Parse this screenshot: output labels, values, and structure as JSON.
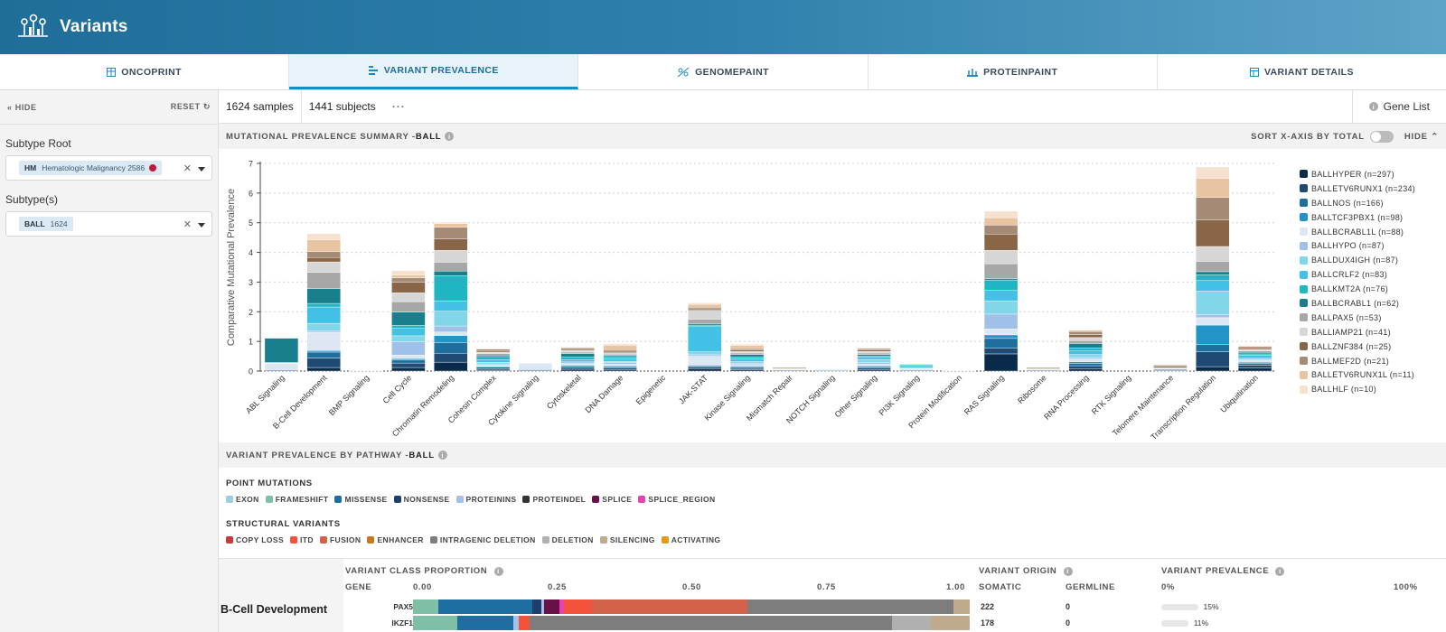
{
  "app": {
    "title": "Variants"
  },
  "tabs": [
    {
      "label": "ONCOPRINT",
      "icon": "grid-icon"
    },
    {
      "label": "VARIANT PREVALENCE",
      "icon": "bars-icon"
    },
    {
      "label": "GENOMEPAINT",
      "icon": "genome-icon"
    },
    {
      "label": "PROTEINPAINT",
      "icon": "protein-icon"
    },
    {
      "label": "VARIANT DETAILS",
      "icon": "table-icon"
    }
  ],
  "sidebar": {
    "hide_label": "HIDE",
    "reset_label": "RESET",
    "subtype_root": {
      "label": "Subtype Root",
      "chip_code": "HM",
      "chip_text": "Hematologic Malignancy 2586",
      "chip_dot_color": "#c4153c"
    },
    "subtypes": {
      "label": "Subtype(s)",
      "chip_code": "BALL",
      "chip_text": "1624"
    }
  },
  "toolbar": {
    "samples": "1624 samples",
    "subjects": "1441 subjects",
    "more": "···",
    "gene_list": "Gene List"
  },
  "summary": {
    "title": "MUTATIONAL PREVALENCE SUMMARY - ",
    "title_bold": "BALL",
    "sort_label": "SORT X-AXIS BY TOTAL",
    "hide_label": "HIDE"
  },
  "chart_data": {
    "type": "bar",
    "stacked": true,
    "ylabel": "Comparative Mutational Prevalence",
    "ylim": [
      0,
      7
    ],
    "yticks": [
      0,
      1,
      2,
      3,
      4,
      5,
      6,
      7
    ],
    "grid": true,
    "legend_position": "right",
    "categories": [
      "ABL Signaling",
      "B-Cell Development",
      "BMP Signaling",
      "Cell Cycle",
      "Chromatin Remodeling",
      "Cohesin Complex",
      "Cytokine Signaling",
      "Cytoskeletal",
      "DNA Damage",
      "Epigenetic",
      "JAK-STAT",
      "Kinase Signaling",
      "Mismatch Repair",
      "NOTCH Signaling",
      "Other Signaling",
      "PI3K Signaling",
      "Protein Modification",
      "RAS Signaling",
      "Ribosome",
      "RNA Processing",
      "RTK Signaling",
      "Telomere Maintenance",
      "Transcription Regulation",
      "Ubiquitination"
    ],
    "series": [
      {
        "name": "BALLHYPER (n=297)",
        "color": "#0a2a4a",
        "values": [
          0,
          0.12,
          0,
          0.12,
          0.3,
          0.03,
          0,
          0.06,
          0.05,
          0,
          0.08,
          0.04,
          0.02,
          0,
          0.05,
          0.02,
          0,
          0.58,
          0.02,
          0.08,
          0,
          0.02,
          0.15,
          0.1
        ]
      },
      {
        "name": "BALLETV6RUNX1 (n=234)",
        "color": "#1f4a73",
        "values": [
          0.03,
          0.32,
          0,
          0.15,
          0.3,
          0.05,
          0.03,
          0.06,
          0.05,
          0,
          0.05,
          0.05,
          0.02,
          0.02,
          0.05,
          0.02,
          0,
          0.2,
          0.02,
          0.1,
          0,
          0.03,
          0.5,
          0.1
        ]
      },
      {
        "name": "BALLNOS (n=166)",
        "color": "#1f6f9e",
        "values": [
          0,
          0.2,
          0,
          0.1,
          0.35,
          0.05,
          0,
          0.05,
          0.05,
          0,
          0.05,
          0.05,
          0,
          0,
          0.05,
          0,
          0,
          0.32,
          0,
          0.08,
          0,
          0,
          0.25,
          0.05
        ]
      },
      {
        "name": "BALLTCF3PBX1 (n=98)",
        "color": "#2394c8",
        "values": [
          0,
          0.05,
          0,
          0.05,
          0.25,
          0.03,
          0.02,
          0.03,
          0.03,
          0,
          0.02,
          0.03,
          0,
          0,
          0.03,
          0.02,
          0,
          0.12,
          0,
          0.05,
          0,
          0,
          0.65,
          0.05
        ]
      },
      {
        "name": "BALLBCRABL1L (n=88)",
        "color": "#dde7f4",
        "values": [
          0.22,
          0.62,
          0.02,
          0.12,
          0.12,
          0.03,
          0.2,
          0.03,
          0.05,
          0,
          0.3,
          0.05,
          0.01,
          0.03,
          0.05,
          0.02,
          0.01,
          0.2,
          0.01,
          0.1,
          0,
          0.02,
          0.25,
          0.05
        ]
      },
      {
        "name": "BALLHYPO (n=87)",
        "color": "#9fc0e8",
        "values": [
          0,
          0.05,
          0,
          0.45,
          0.2,
          0.05,
          0,
          0.03,
          0.05,
          0,
          0.05,
          0.05,
          0,
          0,
          0.05,
          0,
          0,
          0.5,
          0,
          0.05,
          0,
          0,
          0.1,
          0.03
        ]
      },
      {
        "name": "BALLDUX4IGH (n=87)",
        "color": "#82d6ea",
        "values": [
          0.02,
          0.25,
          0,
          0.2,
          0.5,
          0.05,
          0,
          0.05,
          0.05,
          0,
          0.1,
          0.05,
          0,
          0.02,
          0.1,
          0.03,
          0,
          0.45,
          0,
          0.1,
          0,
          0,
          0.8,
          0.05
        ]
      },
      {
        "name": "BALLCRLF2 (n=83)",
        "color": "#42c0e6",
        "values": [
          0.02,
          0.55,
          0,
          0.25,
          0.35,
          0.1,
          0.02,
          0.08,
          0.08,
          0,
          0.85,
          0.1,
          0.01,
          0.01,
          0.08,
          0.05,
          0,
          0.35,
          0.01,
          0.12,
          0,
          0.01,
          0.35,
          0.1
        ]
      },
      {
        "name": "BALLKMT2A (n=76)",
        "color": "#1fb5c1",
        "values": [
          0,
          0.12,
          0,
          0.1,
          0.85,
          0.1,
          0,
          0.08,
          0.06,
          0,
          0.05,
          0.06,
          0.01,
          0,
          0.05,
          0.05,
          0,
          0.35,
          0,
          0.1,
          0,
          0.01,
          0.2,
          0.05
        ]
      },
      {
        "name": "BALLBCRABL1 (n=62)",
        "color": "#1a7f8c",
        "values": [
          0.82,
          0.5,
          0,
          0.45,
          0.15,
          0.05,
          0,
          0.12,
          0.05,
          0,
          0.05,
          0.08,
          0,
          0,
          0.05,
          0.02,
          0,
          0.05,
          0,
          0.15,
          0,
          0.02,
          0.1,
          0.05
        ]
      },
      {
        "name": "BALLPAX5 (n=53)",
        "color": "#a7a7a7",
        "values": [
          0.01,
          0.55,
          0,
          0.35,
          0.3,
          0.05,
          0.01,
          0.05,
          0.05,
          0,
          0.15,
          0.05,
          0.01,
          0.01,
          0.05,
          0.01,
          0.01,
          0.5,
          0.02,
          0.1,
          0,
          0.01,
          0.35,
          0.05
        ]
      },
      {
        "name": "BALLIAMP21 (n=41)",
        "color": "#d6d6d6",
        "values": [
          0,
          0.35,
          0,
          0.3,
          0.4,
          0.05,
          0,
          0.05,
          0.05,
          0,
          0.3,
          0.05,
          0,
          0,
          0.05,
          0,
          0,
          0.45,
          0,
          0.1,
          0,
          0,
          0.5,
          0.05
        ]
      },
      {
        "name": "BALLZNF384 (n=25)",
        "color": "#8a6648",
        "values": [
          0,
          0.15,
          0,
          0.35,
          0.38,
          0.05,
          0,
          0.04,
          0.05,
          0,
          0.05,
          0.05,
          0.03,
          0,
          0.05,
          0,
          0,
          0.55,
          0.03,
          0.1,
          0,
          0.05,
          0.9,
          0.05
        ]
      },
      {
        "name": "BALLMEF2D (n=21)",
        "color": "#a58a75",
        "values": [
          0,
          0.2,
          0,
          0.15,
          0.4,
          0.05,
          0,
          0.05,
          0.05,
          0,
          0.05,
          0.05,
          0.02,
          0,
          0.05,
          0,
          0,
          0.3,
          0.02,
          0.1,
          0,
          0.03,
          0.75,
          0.05
        ]
      },
      {
        "name": "BALLETV6RUNX1L (n=11)",
        "color": "#e8c4a0",
        "values": [
          0,
          0.4,
          0,
          0.1,
          0.12,
          0.02,
          0,
          0.02,
          0.15,
          0,
          0.1,
          0.1,
          0,
          0,
          0.02,
          0,
          0,
          0.25,
          0,
          0.05,
          0,
          0,
          0.65,
          0.02
        ]
      },
      {
        "name": "BALLHLF (n=10)",
        "color": "#f6e1cf",
        "values": [
          0,
          0.2,
          0,
          0.15,
          0.05,
          0.02,
          0,
          0.02,
          0.05,
          0,
          0.05,
          0.05,
          0,
          0,
          0.02,
          0,
          0,
          0.22,
          0,
          0.02,
          0,
          0,
          0.38,
          0.02
        ]
      }
    ]
  },
  "pathway": {
    "title": "VARIANT PREVALENCE BY PATHWAY - ",
    "title_bold": "BALL",
    "point_title": "POINT MUTATIONS",
    "point_items": [
      {
        "label": "EXON",
        "color": "#9fcde0"
      },
      {
        "label": "FRAMESHIFT",
        "color": "#7fbfa6"
      },
      {
        "label": "MISSENSE",
        "color": "#1e6ea0"
      },
      {
        "label": "NONSENSE",
        "color": "#1e3f6e"
      },
      {
        "label": "PROTEININS",
        "color": "#a4c1ea"
      },
      {
        "label": "PROTEINDEL",
        "color": "#333333"
      },
      {
        "label": "SPLICE",
        "color": "#6a1048"
      },
      {
        "label": "SPLICE_REGION",
        "color": "#e544b0"
      }
    ],
    "sv_title": "STRUCTURAL VARIANTS",
    "sv_items": [
      {
        "label": "COPY LOSS",
        "color": "#c43b3b"
      },
      {
        "label": "ITD",
        "color": "#f2533a"
      },
      {
        "label": "FUSION",
        "color": "#d2634a"
      },
      {
        "label": "ENHANCER",
        "color": "#c47a1e"
      },
      {
        "label": "INTRAGENIC DELETION",
        "color": "#7d7d7d"
      },
      {
        "label": "DELETION",
        "color": "#b0b0b0"
      },
      {
        "label": "SILENCING",
        "color": "#c0aa8e"
      },
      {
        "label": "ACTIVATING",
        "color": "#e09a1b"
      }
    ]
  },
  "table": {
    "class_header": "VARIANT CLASS PROPORTION",
    "gene_header": "GENE",
    "ticks": [
      "0.00",
      "0.25",
      "0.50",
      "0.75",
      "1.00"
    ],
    "origin_header": "VARIANT ORIGIN",
    "somatic_header": "SOMATIC",
    "germline_header": "GERMLINE",
    "prev_header": "VARIANT PREVALENCE",
    "prev_min": "0%",
    "prev_max": "100%",
    "pathway_name": "B-Cell Development",
    "rows": [
      {
        "gene": "PAX5",
        "somatic": "222",
        "germline": "0",
        "prevalence": "15%",
        "prevalence_value": 15,
        "segments": [
          {
            "frac": 0.045,
            "color": "#7fbfa6"
          },
          {
            "frac": 0.17,
            "color": "#1e6ea0"
          },
          {
            "frac": 0.015,
            "color": "#1e3f6e"
          },
          {
            "frac": 0.005,
            "color": "#a4c1ea"
          },
          {
            "frac": 0.028,
            "color": "#6a1048"
          },
          {
            "frac": 0.008,
            "color": "#e544b0"
          },
          {
            "frac": 0.05,
            "color": "#f2533a"
          },
          {
            "frac": 0.28,
            "color": "#d2634a"
          },
          {
            "frac": 0.37,
            "color": "#7d7d7d"
          },
          {
            "frac": 0.029,
            "color": "#c0aa8e"
          }
        ]
      },
      {
        "gene": "IKZF1",
        "somatic": "178",
        "germline": "0",
        "prevalence": "11%",
        "prevalence_value": 11,
        "segments": [
          {
            "frac": 0.08,
            "color": "#7fbfa6"
          },
          {
            "frac": 0.1,
            "color": "#1e6ea0"
          },
          {
            "frac": 0.01,
            "color": "#a4c1ea"
          },
          {
            "frac": 0.02,
            "color": "#f2533a"
          },
          {
            "frac": 0.65,
            "color": "#7d7d7d"
          },
          {
            "frac": 0.07,
            "color": "#b0b0b0"
          },
          {
            "frac": 0.07,
            "color": "#c0aa8e"
          }
        ]
      }
    ]
  }
}
